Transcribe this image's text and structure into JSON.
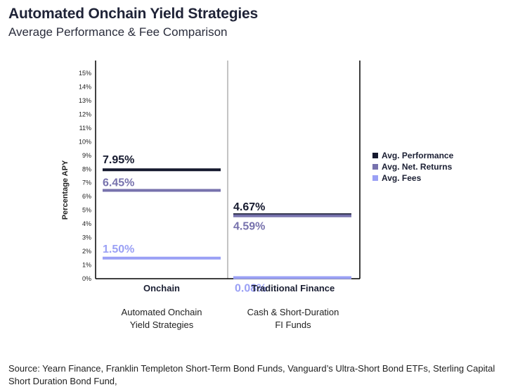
{
  "title": "Automated Onchain Yield Strategies",
  "subtitle": "Average Performance & Fee Comparison",
  "source": "Source: Yearn Finance, Franklin Templeton Short-Term Bond Funds, Vanguard’s Ultra-Short Bond ETFs, Sterling Capital Short Duration Bond Fund,",
  "chart_data": {
    "type": "bar",
    "ylabel": "Percentage APY",
    "ylim": [
      0,
      15
    ],
    "yticks": [
      "0%",
      "1%",
      "2%",
      "3%",
      "4%",
      "5%",
      "6%",
      "7%",
      "8%",
      "9%",
      "10%",
      "11%",
      "12%",
      "13%",
      "14%",
      "15%"
    ],
    "categories": [
      "Onchain",
      "Traditional Finance"
    ],
    "category_descriptions": [
      [
        "Automated Onchain",
        "Yield Strategies"
      ],
      [
        "Cash & Short-Duration",
        "FI Funds"
      ]
    ],
    "series": [
      {
        "name": "Avg. Performance",
        "color": "#15192e",
        "values": [
          7.95,
          4.67
        ],
        "labels": [
          "7.95%",
          "4.67%"
        ]
      },
      {
        "name": "Avg. Net. Returns",
        "color": "#7772ad",
        "values": [
          6.45,
          4.59
        ],
        "labels": [
          "6.45%",
          "4.59%"
        ]
      },
      {
        "name": "Avg. Fees",
        "color": "#9aa0f5",
        "values": [
          1.5,
          0.08
        ],
        "labels": [
          "1.50%",
          "0.08%"
        ]
      }
    ],
    "grid": false,
    "legend_position": "right"
  }
}
